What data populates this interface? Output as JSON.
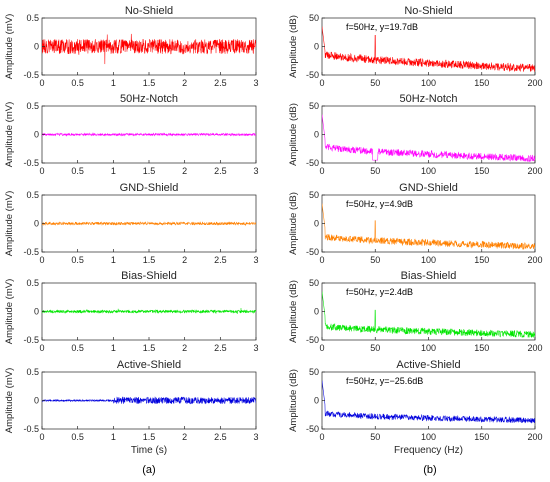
{
  "chart_data": [
    {
      "type": "line",
      "panel": "time",
      "title": "No-Shield",
      "color": "#ff0000",
      "ylabel": "Amplitude (mV)",
      "xlabel": "",
      "xlim": [
        0,
        3
      ],
      "ylim": [
        -0.5,
        0.5
      ],
      "xticks": [
        "0",
        "0.5",
        "1",
        "1.5",
        "2",
        "2.5",
        "3"
      ],
      "yticks": [
        "0.5",
        "0",
        "-0.5"
      ],
      "signal": {
        "amplitude": 0.13,
        "baseline": 0.0,
        "burst_at": null,
        "burst_amplitude": null
      }
    },
    {
      "type": "line",
      "panel": "freq",
      "title": "No-Shield",
      "color": "#ff0000",
      "ylabel": "Amplitude (dB)",
      "xlabel": "",
      "xlim": [
        0,
        200
      ],
      "ylim": [
        -50,
        50
      ],
      "xticks": [
        "0",
        "50",
        "100",
        "150",
        "200"
      ],
      "yticks": [
        "50",
        "0",
        "-50"
      ],
      "annotation": "f=50Hz, y=19.7dB",
      "spectrum": {
        "peak_hz": 50,
        "peak_db": 19.7,
        "noise_start_db": -12,
        "noise_end_db": -38,
        "noise_spread": 7,
        "dip_at_50": false
      }
    },
    {
      "type": "line",
      "panel": "time",
      "title": "50Hz-Notch",
      "color": "#ff00ff",
      "ylabel": "Amplitude (mV)",
      "xlabel": "",
      "xlim": [
        0,
        3
      ],
      "ylim": [
        -0.5,
        0.5
      ],
      "xticks": [
        "0",
        "0.5",
        "1",
        "1.5",
        "2",
        "2.5",
        "3"
      ],
      "yticks": [
        "0.5",
        "0",
        "-0.5"
      ],
      "signal": {
        "amplitude": 0.02,
        "baseline": 0.0,
        "burst_at": null,
        "burst_amplitude": null
      }
    },
    {
      "type": "line",
      "panel": "freq",
      "title": "50Hz-Notch",
      "color": "#ff00ff",
      "ylabel": "Amplitude (dB)",
      "xlabel": "",
      "xlim": [
        0,
        200
      ],
      "ylim": [
        -50,
        50
      ],
      "xticks": [
        "0",
        "50",
        "100",
        "150",
        "200"
      ],
      "yticks": [
        "50",
        "0",
        "-50"
      ],
      "annotation": "",
      "spectrum": {
        "peak_hz": null,
        "peak_db": null,
        "noise_start_db": -20,
        "noise_end_db": -42,
        "noise_spread": 6,
        "dip_at_50": true
      }
    },
    {
      "type": "line",
      "panel": "time",
      "title": "GND-Shield",
      "color": "#ff8000",
      "ylabel": "Amplitude (mV)",
      "xlabel": "",
      "xlim": [
        0,
        3
      ],
      "ylim": [
        -0.5,
        0.5
      ],
      "xticks": [
        "0",
        "0.5",
        "1",
        "1.5",
        "2",
        "2.5",
        "3"
      ],
      "yticks": [
        "0.5",
        "0",
        "-0.5"
      ],
      "signal": {
        "amplitude": 0.025,
        "baseline": 0.0,
        "burst_at": null,
        "burst_amplitude": null
      }
    },
    {
      "type": "line",
      "panel": "freq",
      "title": "GND-Shield",
      "color": "#ff8000",
      "ylabel": "Amplitude (dB)",
      "xlabel": "",
      "xlim": [
        0,
        200
      ],
      "ylim": [
        -50,
        50
      ],
      "xticks": [
        "0",
        "50",
        "100",
        "150",
        "200"
      ],
      "yticks": [
        "50",
        "0",
        "-50"
      ],
      "annotation": "f=50Hz, y=4.9dB",
      "spectrum": {
        "peak_hz": 50,
        "peak_db": 4.9,
        "noise_start_db": -22,
        "noise_end_db": -40,
        "noise_spread": 6,
        "dip_at_50": false
      }
    },
    {
      "type": "line",
      "panel": "freq",
      "title": "Bias-Shield",
      "color": "#00e600",
      "ylabel": "Amplitude (dB)",
      "xlabel": "",
      "xlim": [
        0,
        200
      ],
      "ylim": [
        -50,
        50
      ],
      "xticks": [
        "0",
        "50",
        "100",
        "150",
        "200"
      ],
      "yticks": [
        "50",
        "0",
        "-50"
      ],
      "annotation": "f=50Hz, y=2.4dB",
      "spectrum": {
        "peak_hz": 50,
        "peak_db": 2.4,
        "noise_start_db": -25,
        "noise_end_db": -40,
        "noise_spread": 6,
        "dip_at_50": false
      }
    },
    {
      "type": "line",
      "panel": "time",
      "title": "Bias-Shield",
      "color": "#00e600",
      "ylabel": "Amplitude (mV)",
      "xlabel": "",
      "xlim": [
        0,
        3
      ],
      "ylim": [
        -0.5,
        0.5
      ],
      "xticks": [
        "0",
        "0.5",
        "1",
        "1.5",
        "2",
        "2.5",
        "3"
      ],
      "yticks": [
        "0.5",
        "0",
        "-0.5"
      ],
      "signal": {
        "amplitude": 0.025,
        "baseline": 0.0,
        "burst_at": null,
        "burst_amplitude": null
      }
    },
    {
      "type": "line",
      "panel": "time",
      "title": "Active-Shield",
      "color": "#0000dd",
      "ylabel": "Amplitude (mV)",
      "xlabel": "Time (s)",
      "xlim": [
        0,
        3
      ],
      "ylim": [
        -0.5,
        0.5
      ],
      "xticks": [
        "0",
        "0.5",
        "1",
        "1.5",
        "2",
        "2.5",
        "3"
      ],
      "yticks": [
        "0.5",
        "0",
        "-0.5"
      ],
      "signal": {
        "amplitude": 0.015,
        "baseline": 0.0,
        "burst_at": 1.0,
        "burst_amplitude": 0.06
      }
    },
    {
      "type": "line",
      "panel": "freq",
      "title": "Active-Shield",
      "color": "#0000dd",
      "ylabel": "Amplitude (dB)",
      "xlabel": "Frequency (Hz)",
      "xlim": [
        0,
        200
      ],
      "ylim": [
        -50,
        50
      ],
      "xticks": [
        "0",
        "50",
        "100",
        "150",
        "200"
      ],
      "yticks": [
        "50",
        "0",
        "-50"
      ],
      "annotation": "f=50Hz, y=−25.6dB",
      "spectrum": {
        "peak_hz": null,
        "peak_db": null,
        "noise_start_db": -22,
        "noise_end_db": -35,
        "noise_spread": 5,
        "dip_at_50": false
      }
    }
  ],
  "captions": {
    "left": "(a)",
    "right": "(b)"
  }
}
